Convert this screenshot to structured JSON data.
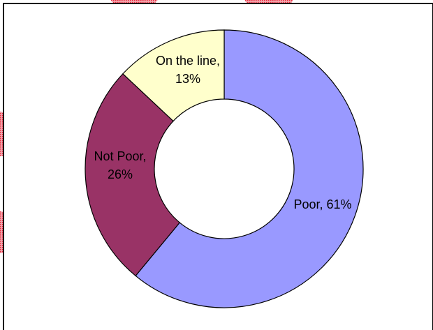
{
  "chart_data": {
    "type": "pie",
    "variant": "donut",
    "title": "",
    "slices": [
      {
        "label": "Poor",
        "value": 61,
        "color": "#9999FF",
        "label_lines": [
          "Poor, 61%"
        ]
      },
      {
        "label": "Not Poor",
        "value": 26,
        "color": "#993366",
        "label_lines": [
          "Not Poor,",
          "26%"
        ]
      },
      {
        "label": "On the line",
        "value": 13,
        "color": "#FFFFCC",
        "label_lines": [
          "On the line,",
          "13%"
        ]
      }
    ],
    "legend": "none",
    "background": "#ffffff",
    "outline_color": "#000000",
    "decoration_color": "#E8283C"
  }
}
